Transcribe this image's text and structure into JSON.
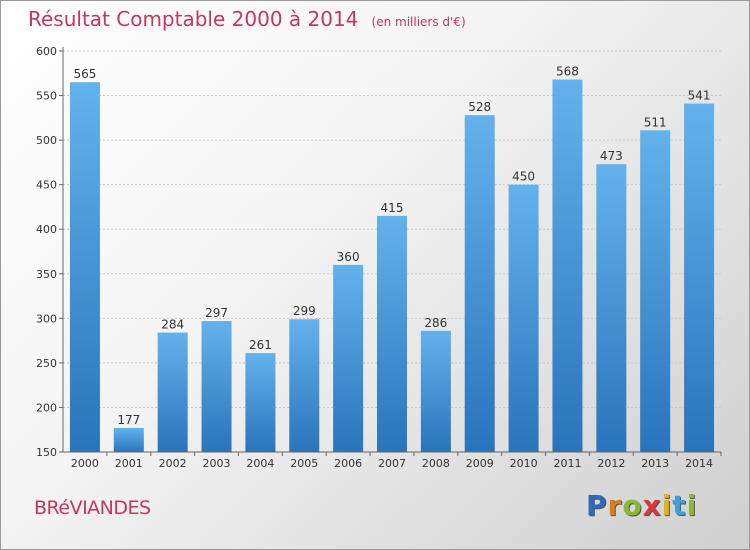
{
  "header": {
    "title": "Résultat Comptable 2000 à 2014",
    "subtitle": "(en milliers d'€)"
  },
  "footer": {
    "commune": "BRéVIANDES",
    "logo_letters": [
      {
        "ch": "P",
        "color": "#2e6db5"
      },
      {
        "ch": "r",
        "color": "#e07b1a"
      },
      {
        "ch": "o",
        "color": "#8ab833"
      },
      {
        "ch": "x",
        "color": "#d63a3a"
      },
      {
        "ch": "i",
        "color": "#e0b21a"
      },
      {
        "ch": "t",
        "color": "#3aa2d6"
      },
      {
        "ch": "i",
        "color": "#8ab833"
      }
    ]
  },
  "chart_data": {
    "type": "bar",
    "title": "Résultat Comptable 2000 à 2014",
    "subtitle": "(en milliers d'€)",
    "categories": [
      "2000",
      "2001",
      "2002",
      "2003",
      "2004",
      "2005",
      "2006",
      "2007",
      "2008",
      "2009",
      "2010",
      "2011",
      "2012",
      "2013",
      "2014"
    ],
    "values": [
      565,
      177,
      284,
      297,
      261,
      299,
      360,
      415,
      286,
      528,
      450,
      568,
      473,
      511,
      541
    ],
    "ylim": [
      150,
      600
    ],
    "yticks": [
      150,
      200,
      250,
      300,
      350,
      400,
      450,
      500,
      550,
      600
    ],
    "grid": true,
    "bar_color": "#3d8fd6",
    "bar_color_light": "#63b2ec",
    "bar_color_dark": "#2a74bb"
  }
}
